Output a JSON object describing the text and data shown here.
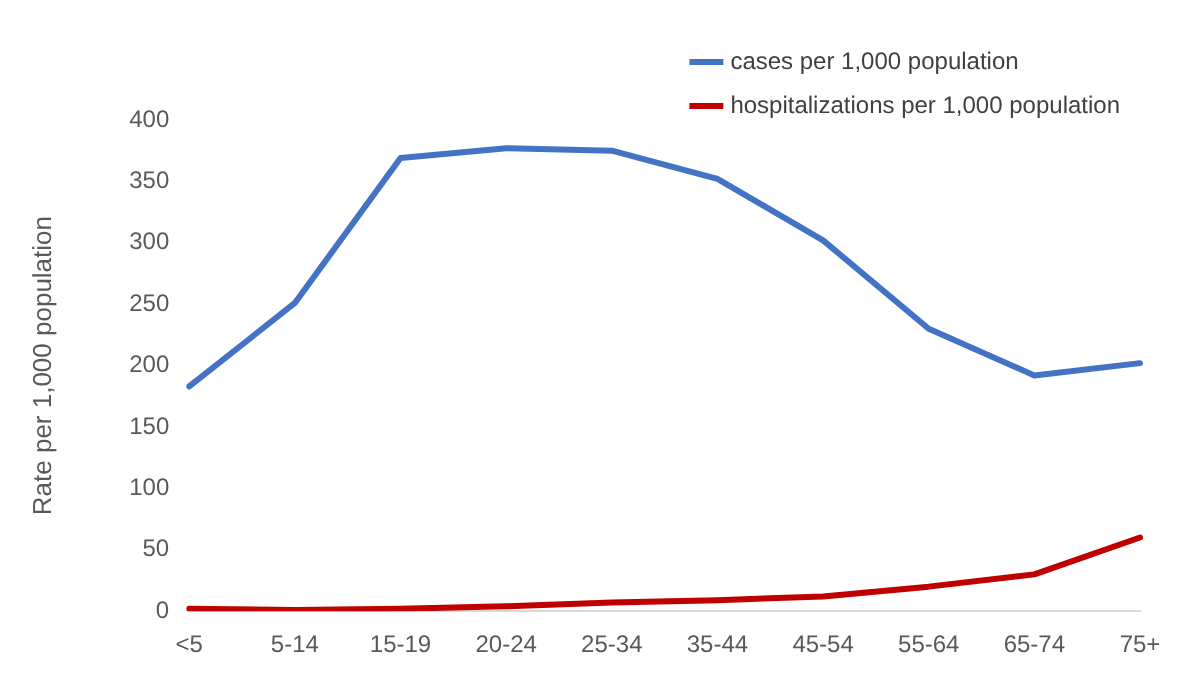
{
  "chart_data": {
    "type": "line",
    "ylabel": "Rate per 1,000 population",
    "categories": [
      "<5",
      "5-14",
      "15-19",
      "20-24",
      "25-34",
      "35-44",
      "45-54",
      "55-64",
      "65-74",
      "75+"
    ],
    "series": [
      {
        "name": "cases per 1,000 population",
        "color": "#4472c4",
        "values": [
          183,
          251,
          369,
          377,
          375,
          352,
          302,
          230,
          192,
          202
        ]
      },
      {
        "name": "hospitalizations per 1,000 population",
        "color": "#c00000",
        "values": [
          2,
          1,
          2,
          4,
          7,
          9,
          12,
          20,
          30,
          60
        ]
      }
    ],
    "ylim": [
      0,
      400
    ],
    "yticks": [
      0,
      50,
      100,
      150,
      200,
      250,
      300,
      350,
      400
    ],
    "grid": false,
    "legend": "top right",
    "marker": "none",
    "line_style": "solid"
  }
}
